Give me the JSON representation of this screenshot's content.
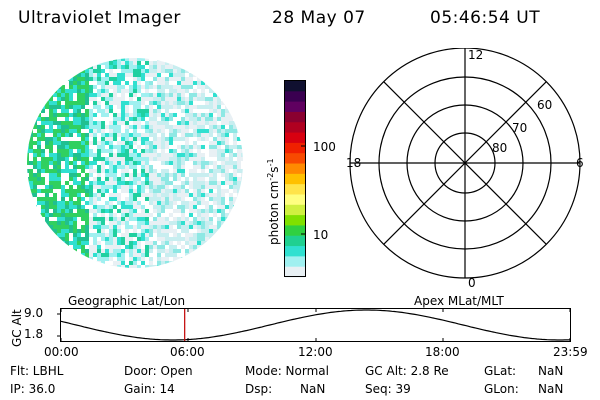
{
  "header": {
    "title": "Ultraviolet Imager",
    "date": "28 May 07",
    "time": "05:46:54 UT"
  },
  "colorbar": {
    "label": "photon cm",
    "label_sup": "-2",
    "label_s": "s",
    "label_s_sup": "-1",
    "tick_100": "100",
    "tick_10": "10",
    "colors": [
      "#101030",
      "#3a0050",
      "#600060",
      "#8a0030",
      "#b00020",
      "#d80010",
      "#f02000",
      "#f84a00",
      "#ff8a00",
      "#ffc000",
      "#ffe44a",
      "#ffff80",
      "#d0f040",
      "#80e000",
      "#30d040",
      "#20d090",
      "#30e0d0",
      "#a0f0f0",
      "#e8f0f4"
    ]
  },
  "polar": {
    "label_12": "12",
    "label_18": "18",
    "label_6": "6",
    "label_0": "0",
    "label_60": "60",
    "label_70": "70",
    "label_80": "80"
  },
  "timeline": {
    "left_title": "Geographic Lat/Lon",
    "right_title": "Apex MLat/MLT",
    "ylabel": "GC Alt",
    "y_top": "9.0",
    "y_bottom": "1.8",
    "x_labels": [
      "00:00",
      "06:00",
      "12:00",
      "18:00",
      "23:59"
    ],
    "marker_fraction": 0.243
  },
  "info": {
    "flt": "Flt: LBHL",
    "ip": "IP: 36.0",
    "door": "Door: Open",
    "gain": "Gain: 14",
    "mode": "Mode: Normal",
    "dsp_label": "Dsp:",
    "dsp_value": "NaN",
    "gcalt": "GC Alt: 2.8 Re",
    "seq": "Seq: 39",
    "glat_label": "GLat:",
    "glat_value": "NaN",
    "glon_label": "GLon:",
    "glon_value": "NaN"
  }
}
